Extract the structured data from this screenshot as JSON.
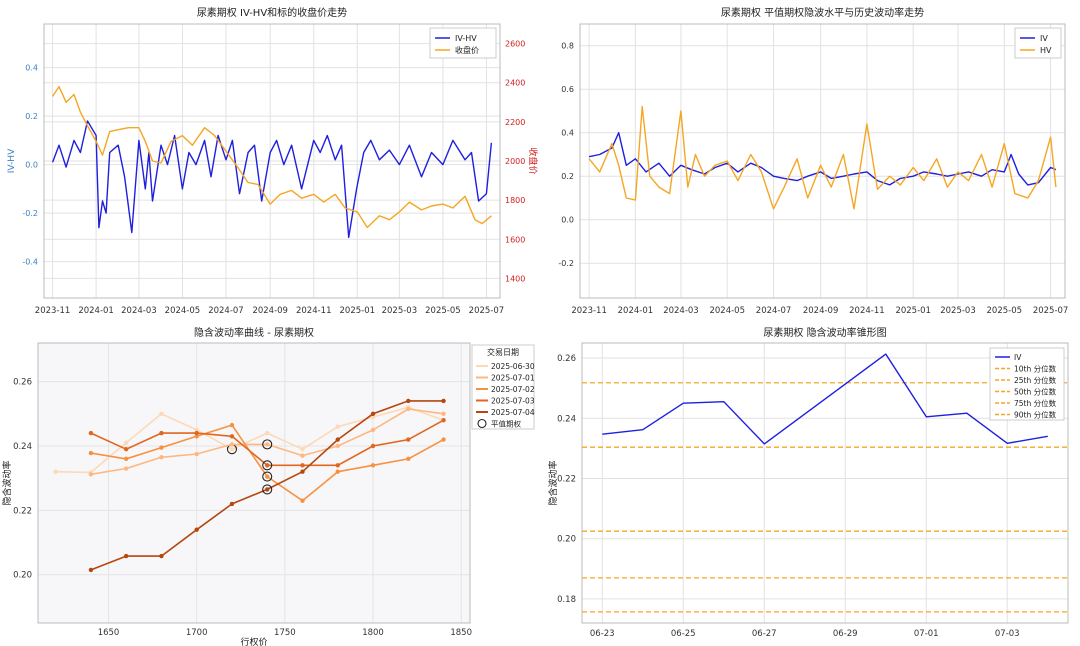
{
  "chart_data": [
    {
      "type": "line",
      "title": "尿素期权 IV-HV和标的收盘价走势",
      "xlabel": "",
      "ylabel": "IV-HV",
      "ylabel2": "收盘价",
      "ylim": [
        -0.55,
        0.58
      ],
      "ylim2": [
        1300,
        2700
      ],
      "xlim": [
        "2023-10-20",
        "2025-07-20"
      ],
      "yticks": [
        -0.4,
        -0.2,
        0.0,
        0.2,
        0.4
      ],
      "yticks2": [
        1400,
        1600,
        1800,
        2000,
        2200,
        2400,
        2600
      ],
      "xticks": [
        "2023-11",
        "2024-01",
        "2024-03",
        "2024-05",
        "2024-07",
        "2024-09",
        "2024-11",
        "2025-01",
        "2025-03",
        "2025-05",
        "2025-07"
      ],
      "legend_position": "top-right",
      "grid": true,
      "series": [
        {
          "name": "IV-HV",
          "color": "#1f1fe0",
          "axis": "left",
          "x": [
            "2023-11-01",
            "2023-11-10",
            "2023-11-20",
            "2023-12-01",
            "2023-12-10",
            "2023-12-20",
            "2024-01-01",
            "2024-01-05",
            "2024-01-10",
            "2024-01-15",
            "2024-01-20",
            "2024-02-01",
            "2024-02-10",
            "2024-02-20",
            "2024-03-01",
            "2024-03-10",
            "2024-03-15",
            "2024-03-20",
            "2024-04-01",
            "2024-04-10",
            "2024-04-20",
            "2024-05-01",
            "2024-05-10",
            "2024-05-20",
            "2024-06-01",
            "2024-06-10",
            "2024-06-20",
            "2024-07-01",
            "2024-07-10",
            "2024-07-20",
            "2024-08-01",
            "2024-08-10",
            "2024-08-20",
            "2024-09-01",
            "2024-09-10",
            "2024-09-20",
            "2024-10-01",
            "2024-10-15",
            "2024-11-01",
            "2024-11-10",
            "2024-11-20",
            "2024-12-01",
            "2024-12-10",
            "2024-12-20",
            "2024-12-31",
            "2025-01-10",
            "2025-01-20",
            "2025-02-01",
            "2025-02-15",
            "2025-03-01",
            "2025-03-15",
            "2025-04-01",
            "2025-04-15",
            "2025-05-01",
            "2025-05-15",
            "2025-06-01",
            "2025-06-10",
            "2025-06-20",
            "2025-07-01",
            "2025-07-08"
          ],
          "values": [
            0.01,
            0.08,
            -0.01,
            0.1,
            0.05,
            0.18,
            0.12,
            -0.26,
            -0.15,
            -0.2,
            0.05,
            0.08,
            -0.05,
            -0.28,
            0.1,
            -0.1,
            0.05,
            -0.15,
            0.08,
            0.0,
            0.12,
            -0.1,
            0.05,
            0.0,
            0.1,
            -0.05,
            0.12,
            0.02,
            0.1,
            -0.12,
            0.05,
            0.08,
            -0.15,
            0.05,
            0.1,
            0.0,
            0.08,
            -0.1,
            0.1,
            0.05,
            0.12,
            0.02,
            0.08,
            -0.3,
            -0.1,
            0.05,
            0.1,
            0.02,
            0.06,
            0.0,
            0.08,
            -0.05,
            0.05,
            0.0,
            0.1,
            0.02,
            0.05,
            -0.15,
            -0.12,
            0.09
          ]
        },
        {
          "name": "收盘价",
          "color": "#f5a623",
          "axis": "right",
          "x": [
            "2023-11-01",
            "2023-11-10",
            "2023-11-20",
            "2023-12-01",
            "2023-12-10",
            "2023-12-20",
            "2024-01-01",
            "2024-01-10",
            "2024-01-20",
            "2024-02-01",
            "2024-02-15",
            "2024-03-01",
            "2024-03-10",
            "2024-03-20",
            "2024-04-01",
            "2024-04-15",
            "2024-05-01",
            "2024-05-15",
            "2024-06-01",
            "2024-06-15",
            "2024-07-01",
            "2024-07-15",
            "2024-08-01",
            "2024-08-15",
            "2024-09-01",
            "2024-09-15",
            "2024-10-01",
            "2024-10-15",
            "2024-11-01",
            "2024-11-15",
            "2024-12-01",
            "2024-12-15",
            "2025-01-01",
            "2025-01-15",
            "2025-02-01",
            "2025-02-15",
            "2025-03-01",
            "2025-03-15",
            "2025-04-01",
            "2025-04-15",
            "2025-05-01",
            "2025-05-15",
            "2025-06-01",
            "2025-06-15",
            "2025-06-25",
            "2025-07-08"
          ],
          "values": [
            2330,
            2380,
            2300,
            2340,
            2250,
            2180,
            2100,
            2030,
            2150,
            2160,
            2170,
            2170,
            2100,
            2000,
            1990,
            2100,
            2130,
            2080,
            2170,
            2130,
            2050,
            1980,
            1890,
            1880,
            1780,
            1830,
            1850,
            1810,
            1830,
            1790,
            1830,
            1760,
            1740,
            1660,
            1720,
            1700,
            1740,
            1790,
            1750,
            1770,
            1780,
            1760,
            1820,
            1700,
            1680,
            1720
          ]
        }
      ]
    },
    {
      "type": "line",
      "title": "尿素期权 平值期权隐波水平与历史波动率走势",
      "xlabel": "",
      "ylabel": "",
      "ylim": [
        -0.36,
        0.9
      ],
      "xlim": [
        "2023-10-20",
        "2025-07-20"
      ],
      "yticks": [
        -0.2,
        0.0,
        0.2,
        0.4,
        0.6,
        0.8
      ],
      "xticks": [
        "2023-11",
        "2024-01",
        "2024-03",
        "2024-05",
        "2024-07",
        "2024-09",
        "2024-11",
        "2025-01",
        "2025-03",
        "2025-05",
        "2025-07"
      ],
      "legend_position": "top-right",
      "grid": true,
      "series": [
        {
          "name": "IV",
          "color": "#1f1fe0",
          "x": [
            "2023-11-01",
            "2023-11-15",
            "2023-12-01",
            "2023-12-10",
            "2023-12-20",
            "2024-01-01",
            "2024-01-15",
            "2024-02-01",
            "2024-02-15",
            "2024-03-01",
            "2024-03-15",
            "2024-04-01",
            "2024-04-15",
            "2024-05-01",
            "2024-05-15",
            "2024-06-01",
            "2024-06-15",
            "2024-07-01",
            "2024-07-15",
            "2024-08-01",
            "2024-08-15",
            "2024-09-01",
            "2024-09-15",
            "2024-10-01",
            "2024-10-15",
            "2024-11-01",
            "2024-11-15",
            "2024-12-01",
            "2024-12-15",
            "2025-01-01",
            "2025-01-15",
            "2025-02-01",
            "2025-02-15",
            "2025-03-01",
            "2025-03-15",
            "2025-04-01",
            "2025-04-15",
            "2025-05-01",
            "2025-05-10",
            "2025-05-20",
            "2025-06-01",
            "2025-06-15",
            "2025-07-01",
            "2025-07-08"
          ],
          "values": [
            0.29,
            0.3,
            0.33,
            0.4,
            0.25,
            0.28,
            0.22,
            0.26,
            0.2,
            0.25,
            0.23,
            0.21,
            0.24,
            0.26,
            0.22,
            0.26,
            0.24,
            0.2,
            0.19,
            0.18,
            0.2,
            0.22,
            0.19,
            0.2,
            0.21,
            0.22,
            0.18,
            0.16,
            0.19,
            0.2,
            0.22,
            0.21,
            0.2,
            0.21,
            0.22,
            0.2,
            0.23,
            0.22,
            0.3,
            0.21,
            0.16,
            0.17,
            0.24,
            0.23
          ]
        },
        {
          "name": "HV",
          "color": "#f5a623",
          "x": [
            "2023-11-01",
            "2023-11-15",
            "2023-12-01",
            "2023-12-10",
            "2023-12-20",
            "2024-01-01",
            "2024-01-10",
            "2024-01-20",
            "2024-02-01",
            "2024-02-15",
            "2024-03-01",
            "2024-03-10",
            "2024-03-20",
            "2024-04-01",
            "2024-04-15",
            "2024-05-01",
            "2024-05-15",
            "2024-06-01",
            "2024-06-15",
            "2024-07-01",
            "2024-07-15",
            "2024-08-01",
            "2024-08-15",
            "2024-09-01",
            "2024-09-15",
            "2024-10-01",
            "2024-10-15",
            "2024-11-01",
            "2024-11-15",
            "2024-12-01",
            "2024-12-15",
            "2025-01-01",
            "2025-01-15",
            "2025-02-01",
            "2025-02-15",
            "2025-03-01",
            "2025-03-15",
            "2025-04-01",
            "2025-04-15",
            "2025-05-01",
            "2025-05-15",
            "2025-06-01",
            "2025-06-15",
            "2025-07-01",
            "2025-07-08"
          ],
          "values": [
            0.28,
            0.22,
            0.35,
            0.25,
            0.1,
            0.09,
            0.52,
            0.2,
            0.15,
            0.12,
            0.5,
            0.15,
            0.3,
            0.2,
            0.25,
            0.27,
            0.18,
            0.3,
            0.22,
            0.05,
            0.15,
            0.28,
            0.1,
            0.25,
            0.15,
            0.3,
            0.05,
            0.44,
            0.14,
            0.2,
            0.16,
            0.24,
            0.18,
            0.28,
            0.15,
            0.22,
            0.18,
            0.3,
            0.15,
            0.35,
            0.12,
            0.1,
            0.18,
            0.38,
            0.15
          ]
        }
      ]
    },
    {
      "type": "line",
      "title": "隐含波动率曲线 - 尿素期权",
      "xlabel": "行权价",
      "ylabel": "隐含波动率",
      "xlim": [
        1610,
        1855
      ],
      "ylim": [
        0.185,
        0.272
      ],
      "xticks": [
        1650,
        1700,
        1750,
        1800,
        1850
      ],
      "yticks": [
        0.2,
        0.22,
        0.24,
        0.26
      ],
      "legend_title": "交易日期",
      "legend_position": "top-right",
      "atm_label": "平值期权",
      "grid": true,
      "series": [
        {
          "name": "2025-06-30",
          "color": "#fdd9b5",
          "x": [
            1620,
            1640,
            1660,
            1680,
            1700,
            1720,
            1740,
            1760,
            1780,
            1800,
            1820,
            1840
          ],
          "values": [
            0.232,
            0.2318,
            0.241,
            0.25,
            0.245,
            0.239,
            0.244,
            0.239,
            0.246,
            0.249,
            0.252,
            0.248
          ],
          "atm": [
            1720,
            0.239
          ]
        },
        {
          "name": "2025-07-01",
          "color": "#fdb882",
          "x": [
            1640,
            1660,
            1680,
            1700,
            1720,
            1740,
            1760,
            1780,
            1800,
            1820,
            1840
          ],
          "values": [
            0.2312,
            0.233,
            0.2365,
            0.2375,
            0.2405,
            0.2405,
            0.237,
            0.24,
            0.245,
            0.2515,
            0.25
          ],
          "atm": [
            1740,
            0.2405
          ]
        },
        {
          "name": "2025-07-02",
          "color": "#f8913f",
          "x": [
            1640,
            1660,
            1680,
            1700,
            1720,
            1740,
            1760,
            1780,
            1800,
            1820,
            1840
          ],
          "values": [
            0.2378,
            0.236,
            0.2395,
            0.243,
            0.2465,
            0.2305,
            0.223,
            0.232,
            0.234,
            0.236,
            0.242
          ],
          "atm": [
            1740,
            0.2305
          ]
        },
        {
          "name": "2025-07-03",
          "color": "#e0671f",
          "x": [
            1640,
            1660,
            1680,
            1700,
            1720,
            1740,
            1760,
            1780,
            1800,
            1820,
            1840
          ],
          "values": [
            0.244,
            0.239,
            0.244,
            0.244,
            0.243,
            0.234,
            0.234,
            0.234,
            0.24,
            0.242,
            0.248
          ],
          "atm": [
            1740,
            0.234
          ]
        },
        {
          "name": "2025-07-04",
          "color": "#b5470f",
          "x": [
            1640,
            1660,
            1680,
            1700,
            1720,
            1740,
            1760,
            1780,
            1800,
            1820,
            1840
          ],
          "values": [
            0.2015,
            0.2058,
            0.2058,
            0.214,
            0.222,
            0.2265,
            0.232,
            0.242,
            0.25,
            0.254,
            0.254
          ],
          "atm": [
            1740,
            0.2265
          ]
        }
      ]
    },
    {
      "type": "line",
      "title": "尿素期权 隐含波动率锥形图",
      "xlabel": "",
      "ylabel": "隐含波动率",
      "ylim": [
        0.172,
        0.265
      ],
      "xlim": [
        "2025-06-22T12",
        "2025-07-04T12"
      ],
      "yticks": [
        0.18,
        0.2,
        0.22,
        0.24,
        0.26
      ],
      "xticks": [
        "06-23",
        "06-25",
        "06-27",
        "06-29",
        "07-01",
        "07-03"
      ],
      "legend_position": "top-right",
      "grid": true,
      "series": [
        {
          "name": "IV",
          "color": "#1f1fe0",
          "x": [
            "2025-06-23",
            "2025-06-24",
            "2025-06-25",
            "2025-06-26",
            "2025-06-27",
            "2025-06-30",
            "2025-07-01",
            "2025-07-02",
            "2025-07-03",
            "2025-07-04"
          ],
          "values": [
            0.2347,
            0.2362,
            0.245,
            0.2455,
            0.2315,
            0.2613,
            0.2405,
            0.2417,
            0.2317,
            0.234
          ]
        }
      ],
      "percentiles": [
        {
          "name": "10th 分位数",
          "value": 0.1757,
          "color": "#f5a623"
        },
        {
          "name": "25th 分位数",
          "value": 0.187,
          "color": "#f5a623"
        },
        {
          "name": "50th 分位数",
          "value": 0.2025,
          "color": "#f5a623"
        },
        {
          "name": "75th 分位数",
          "value": 0.2304,
          "color": "#f5a623"
        },
        {
          "name": "90th 分位数",
          "value": 0.2518,
          "color": "#f5a623"
        }
      ]
    }
  ]
}
